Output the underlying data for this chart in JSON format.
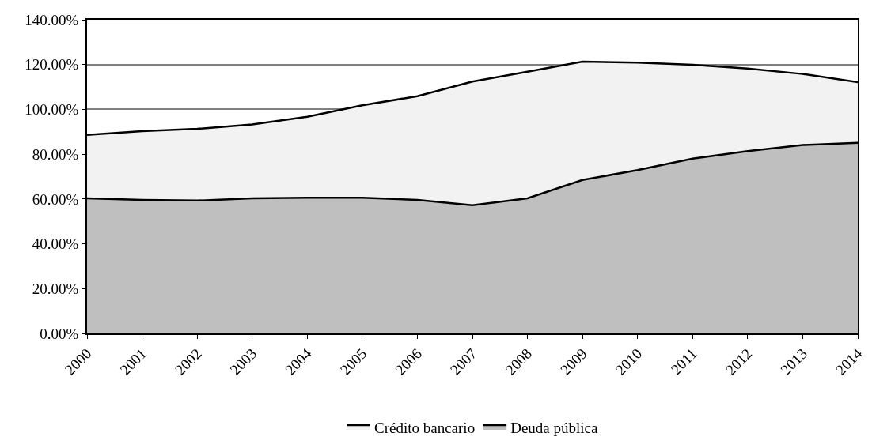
{
  "chart_data": {
    "type": "area",
    "stacked": true,
    "x": [
      2000,
      2001,
      2002,
      2003,
      2004,
      2005,
      2006,
      2007,
      2008,
      2009,
      2010,
      2011,
      2012,
      2013,
      2014
    ],
    "series": [
      {
        "name": "Deuda pública",
        "color": "#bfbfbf",
        "values": [
          60.3,
          59.6,
          59.3,
          60.3,
          60.6,
          60.6,
          59.6,
          57.2,
          60.3,
          68.5,
          72.9,
          78.0,
          81.4,
          84.1,
          85.1
        ]
      },
      {
        "name": "Crédito bancario",
        "color": "#f2f2f2",
        "values": [
          28.3,
          30.7,
          32.0,
          33.0,
          36.1,
          41.2,
          46.3,
          55.2,
          56.5,
          52.8,
          48.0,
          41.9,
          36.8,
          31.7,
          27.0
        ]
      }
    ],
    "xlim": [
      2000,
      2014
    ],
    "xticks": [
      2000,
      2001,
      2002,
      2003,
      2004,
      2005,
      2006,
      2007,
      2008,
      2009,
      2010,
      2011,
      2012,
      2013,
      2014
    ],
    "ylim": [
      0,
      140
    ],
    "yticks": [
      {
        "value": 0,
        "label": "0.00%"
      },
      {
        "value": 20,
        "label": "20.00%"
      },
      {
        "value": 40,
        "label": "40.00%"
      },
      {
        "value": 60,
        "label": "60.00%"
      },
      {
        "value": 80,
        "label": "80.00%"
      },
      {
        "value": 100,
        "label": "100.00%"
      },
      {
        "value": 120,
        "label": "120.00%"
      },
      {
        "value": 140,
        "label": "140.00%"
      }
    ],
    "grid": "y",
    "legend": "bottom"
  }
}
